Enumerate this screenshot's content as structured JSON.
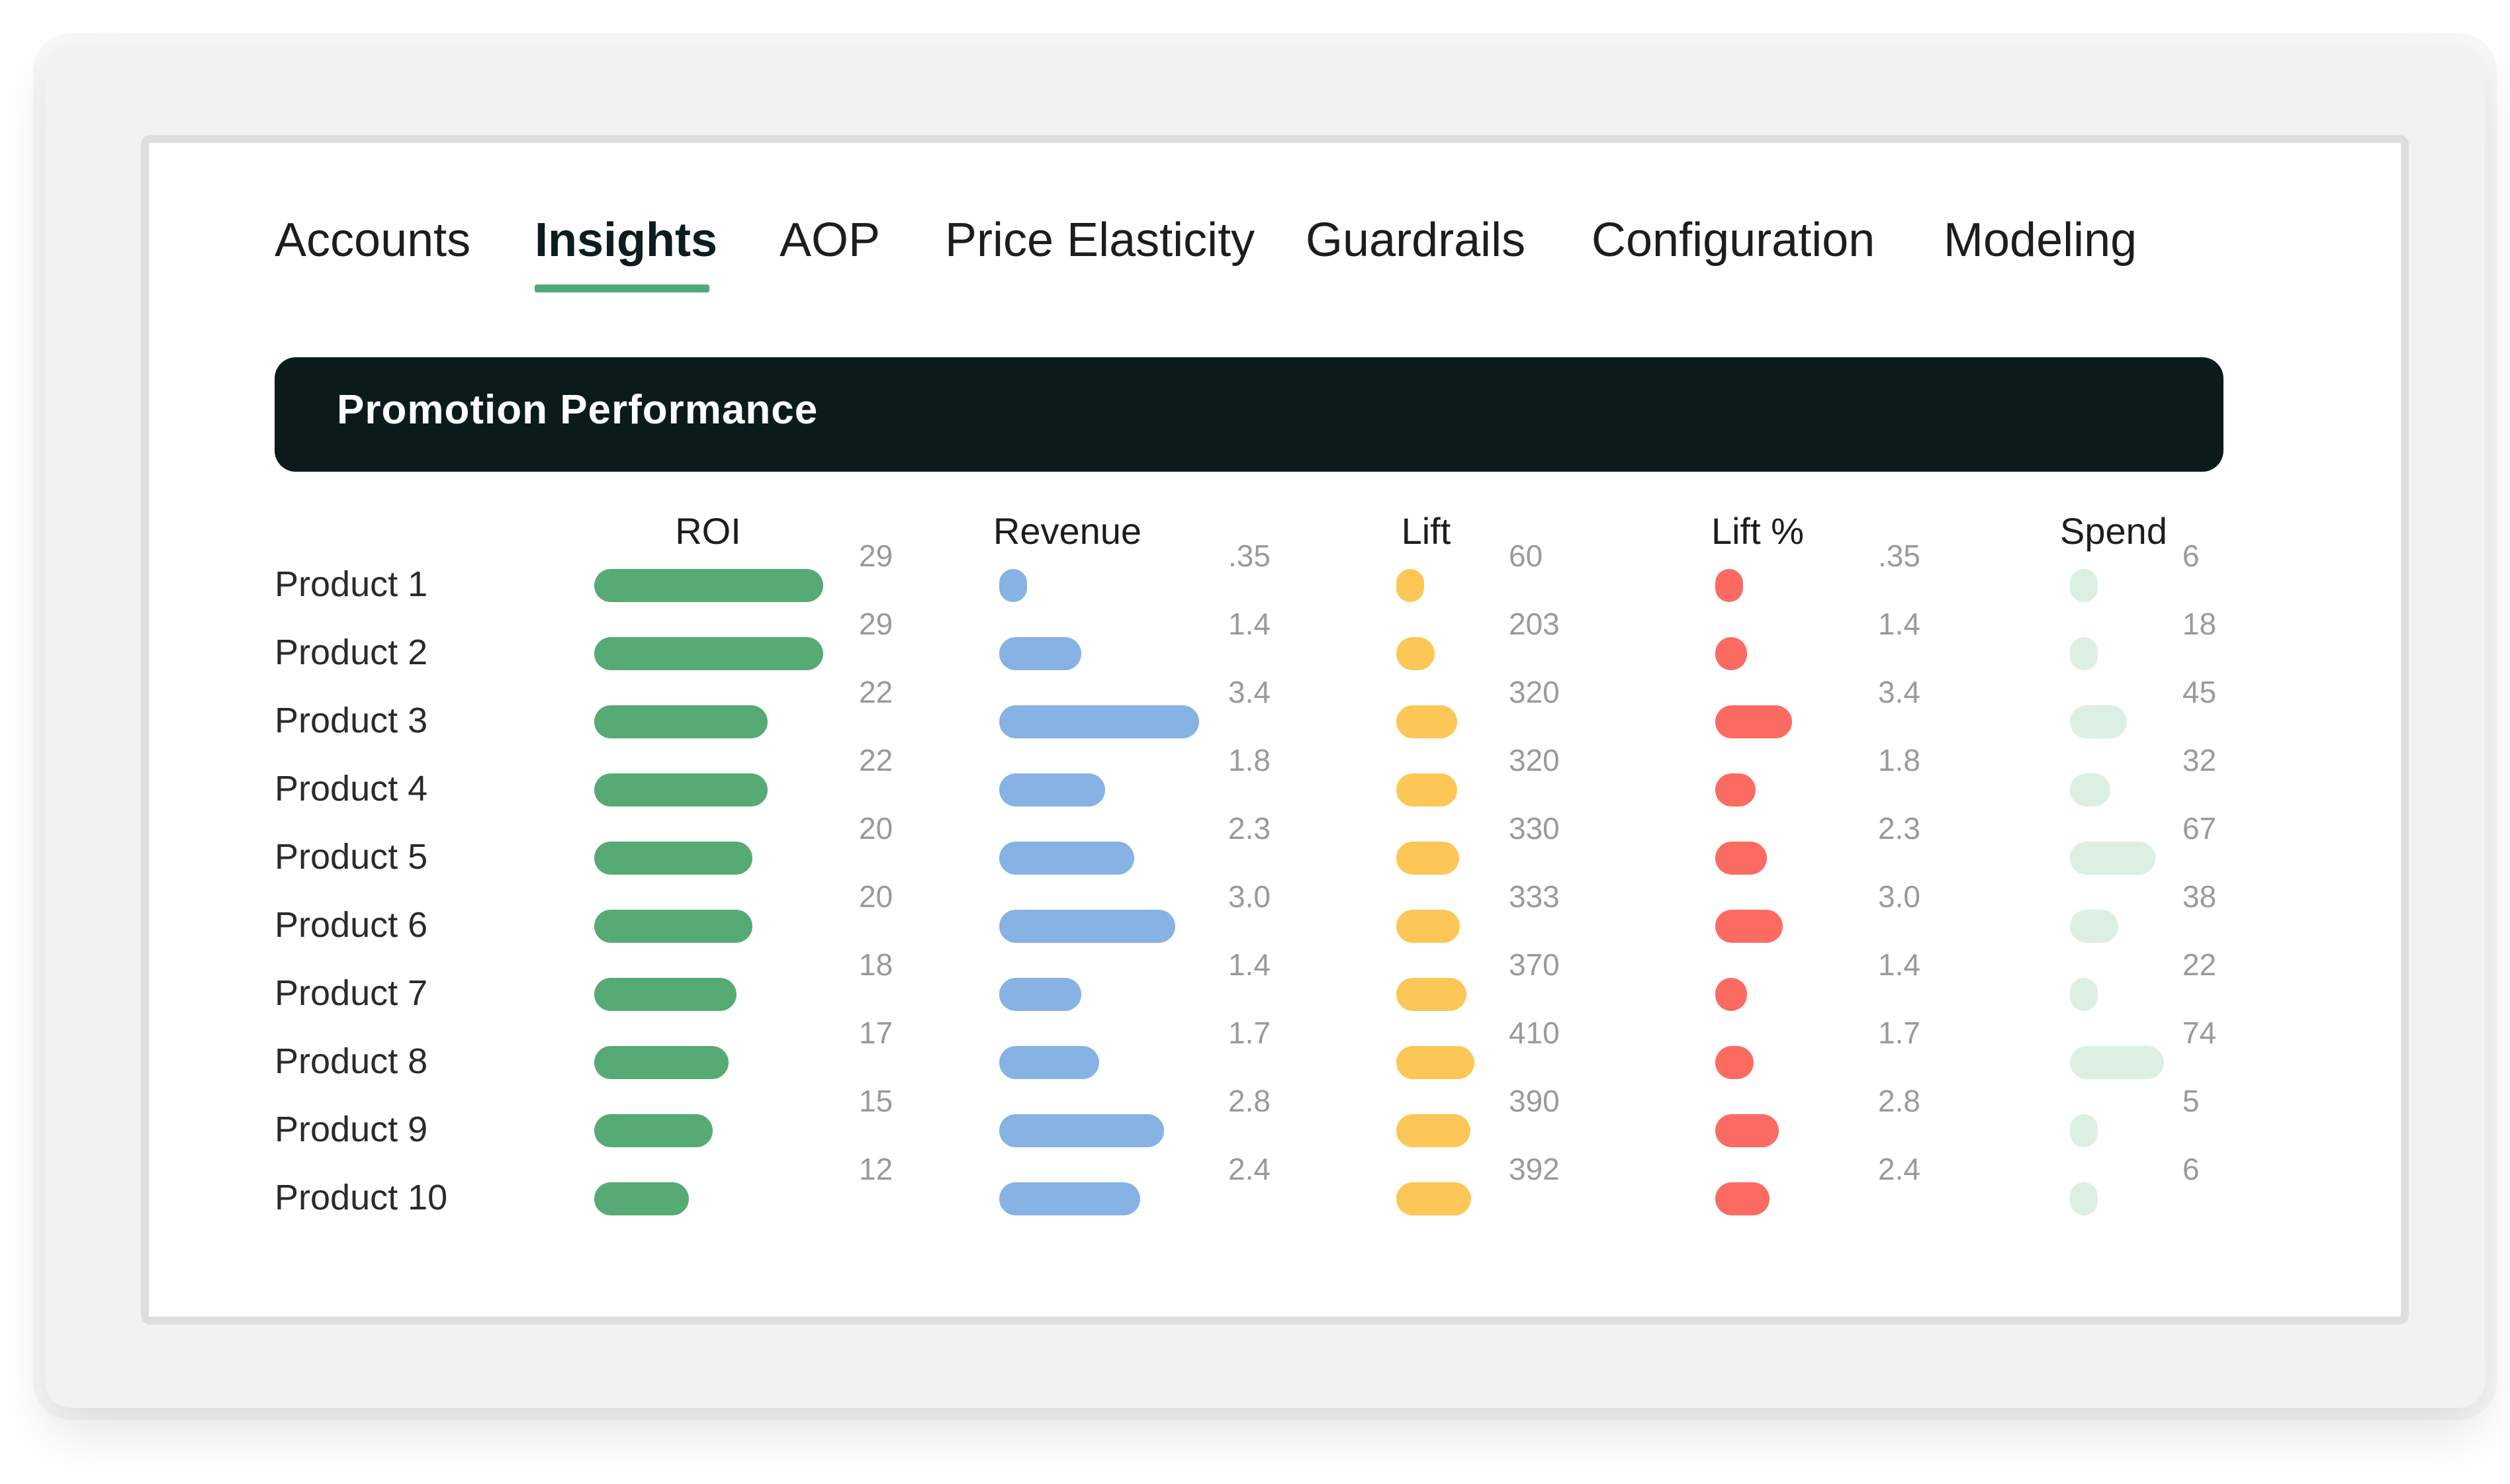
{
  "nav": {
    "tabs": [
      {
        "label": "Accounts",
        "active": false
      },
      {
        "label": "Insights",
        "active": true
      },
      {
        "label": "AOP",
        "active": false
      },
      {
        "label": "Price Elasticity",
        "active": false
      },
      {
        "label": "Guardrails",
        "active": false
      },
      {
        "label": "Configuration",
        "active": false
      },
      {
        "label": "Modeling",
        "active": false
      }
    ],
    "accent_color": "#4eaa77"
  },
  "panel": {
    "title": "Promotion Performance"
  },
  "table": {
    "columns": [
      {
        "key": "roi",
        "label": "ROI",
        "color": "#56aa74",
        "max": 29
      },
      {
        "key": "revenue",
        "label": "Revenue",
        "color": "#86b2e4",
        "max": 3.4
      },
      {
        "key": "lift",
        "label": "Lift",
        "color": "#fdc757",
        "max": 410
      },
      {
        "key": "lift_pct",
        "label": "Lift %",
        "color": "#fc6b62",
        "max": 3.4
      },
      {
        "key": "spend",
        "label": "Spend",
        "color": "#dcefe3",
        "max": 74
      }
    ],
    "rows": [
      {
        "product": "Product 1",
        "roi": 29,
        "roi_label": "29",
        "revenue": 0.35,
        "revenue_label": ".35",
        "lift": 60,
        "lift_label": "60",
        "lift_pct": 0.35,
        "lift_pct_label": ".35",
        "spend": 6,
        "spend_label": "6"
      },
      {
        "product": "Product 2",
        "roi": 29,
        "roi_label": "29",
        "revenue": 1.4,
        "revenue_label": "1.4",
        "lift": 203,
        "lift_label": "203",
        "lift_pct": 1.4,
        "lift_pct_label": "1.4",
        "spend": 18,
        "spend_label": "18"
      },
      {
        "product": "Product 3",
        "roi": 22,
        "roi_label": "22",
        "revenue": 3.4,
        "revenue_label": "3.4",
        "lift": 320,
        "lift_label": "320",
        "lift_pct": 3.4,
        "lift_pct_label": "3.4",
        "spend": 45,
        "spend_label": "45"
      },
      {
        "product": "Product 4",
        "roi": 22,
        "roi_label": "22",
        "revenue": 1.8,
        "revenue_label": "1.8",
        "lift": 320,
        "lift_label": "320",
        "lift_pct": 1.8,
        "lift_pct_label": "1.8",
        "spend": 32,
        "spend_label": "32"
      },
      {
        "product": "Product 5",
        "roi": 20,
        "roi_label": "20",
        "revenue": 2.3,
        "revenue_label": "2.3",
        "lift": 330,
        "lift_label": "330",
        "lift_pct": 2.3,
        "lift_pct_label": "2.3",
        "spend": 67,
        "spend_label": "67"
      },
      {
        "product": "Product 6",
        "roi": 20,
        "roi_label": "20",
        "revenue": 3.0,
        "revenue_label": "3.0",
        "lift": 333,
        "lift_label": "333",
        "lift_pct": 3.0,
        "lift_pct_label": "3.0",
        "spend": 38,
        "spend_label": "38"
      },
      {
        "product": "Product 7",
        "roi": 18,
        "roi_label": "18",
        "revenue": 1.4,
        "revenue_label": "1.4",
        "lift": 370,
        "lift_label": "370",
        "lift_pct": 1.4,
        "lift_pct_label": "1.4",
        "spend": 22,
        "spend_label": "22"
      },
      {
        "product": "Product 8",
        "roi": 17,
        "roi_label": "17",
        "revenue": 1.7,
        "revenue_label": "1.7",
        "lift": 410,
        "lift_label": "410",
        "lift_pct": 1.7,
        "lift_pct_label": "1.7",
        "spend": 74,
        "spend_label": "74"
      },
      {
        "product": "Product 9",
        "roi": 15,
        "roi_label": "15",
        "revenue": 2.8,
        "revenue_label": "2.8",
        "lift": 390,
        "lift_label": "390",
        "lift_pct": 2.8,
        "lift_pct_label": "2.8",
        "spend": 5,
        "spend_label": "5"
      },
      {
        "product": "Product 10",
        "roi": 12,
        "roi_label": "12",
        "revenue": 2.4,
        "revenue_label": "2.4",
        "lift": 392,
        "lift_label": "392",
        "lift_pct": 2.4,
        "lift_pct_label": "2.4",
        "spend": 6,
        "spend_label": "6"
      }
    ]
  }
}
